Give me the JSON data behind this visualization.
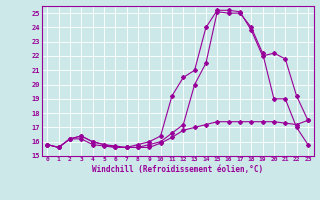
{
  "xlabel": "Windchill (Refroidissement éolien,°C)",
  "bg_color": "#cce8e8",
  "line_color": "#990099",
  "xlim": [
    -0.5,
    23.5
  ],
  "ylim": [
    15,
    25.5
  ],
  "yticks": [
    15,
    16,
    17,
    18,
    19,
    20,
    21,
    22,
    23,
    24,
    25
  ],
  "xticks": [
    0,
    1,
    2,
    3,
    4,
    5,
    6,
    7,
    8,
    9,
    10,
    11,
    12,
    13,
    14,
    15,
    16,
    17,
    18,
    19,
    20,
    21,
    22,
    23
  ],
  "series1_x": [
    0,
    1,
    2,
    3,
    4,
    5,
    6,
    7,
    8,
    9,
    10,
    11,
    12,
    13,
    14,
    15,
    16,
    17,
    18,
    19,
    20,
    21,
    22,
    23
  ],
  "series1_y": [
    15.8,
    15.6,
    16.2,
    16.2,
    15.8,
    15.7,
    15.6,
    15.6,
    15.6,
    15.6,
    15.9,
    16.3,
    16.8,
    17.0,
    17.2,
    17.4,
    17.4,
    17.4,
    17.4,
    17.4,
    17.4,
    17.3,
    17.2,
    17.5
  ],
  "series2_x": [
    0,
    1,
    2,
    3,
    4,
    5,
    6,
    7,
    8,
    9,
    10,
    11,
    12,
    13,
    14,
    15,
    16,
    17,
    18,
    19,
    20,
    21,
    22,
    23
  ],
  "series2_y": [
    15.8,
    15.6,
    16.2,
    16.4,
    16.0,
    15.8,
    15.7,
    15.6,
    15.8,
    16.0,
    16.4,
    19.2,
    20.5,
    21.0,
    24.0,
    25.2,
    25.2,
    25.1,
    23.8,
    22.0,
    22.2,
    21.8,
    19.2,
    17.5
  ],
  "series3_x": [
    0,
    1,
    2,
    3,
    4,
    5,
    6,
    7,
    8,
    9,
    10,
    11,
    12,
    13,
    14,
    15,
    16,
    17,
    18,
    19,
    20,
    21,
    22,
    23
  ],
  "series3_y": [
    15.8,
    15.6,
    16.2,
    16.4,
    16.0,
    15.8,
    15.6,
    15.6,
    15.6,
    15.8,
    16.0,
    16.6,
    17.2,
    20.0,
    21.5,
    25.1,
    25.0,
    25.0,
    24.0,
    22.2,
    19.0,
    19.0,
    17.0,
    15.8
  ]
}
